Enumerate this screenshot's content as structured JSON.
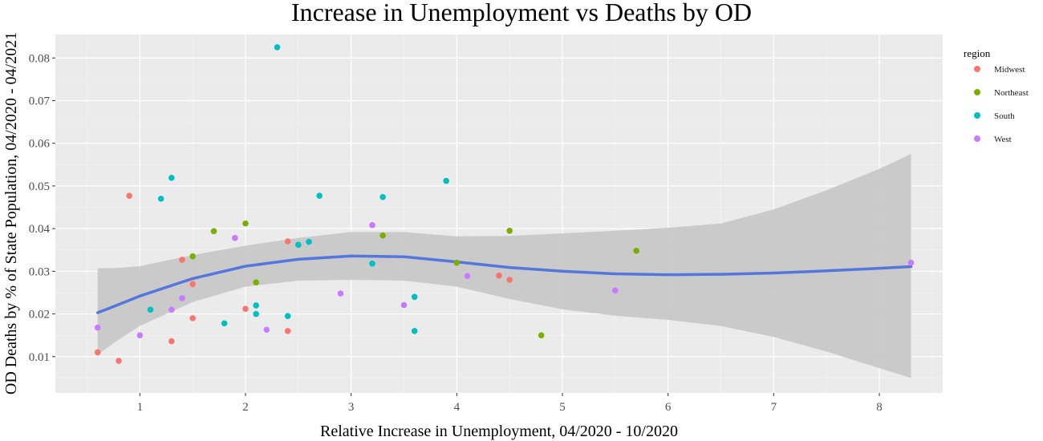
{
  "chart_data": {
    "type": "scatter",
    "title": "Increase in Unemployment vs Deaths by OD",
    "xlabel": "Relative Increase in Unemployment, 04/2020 - 10/2020",
    "ylabel": "OD Deaths by % of State Population, 04/2020 - 04/2021",
    "xlim": [
      0.2,
      8.6
    ],
    "ylim": [
      0.0015,
      0.0855
    ],
    "x_ticks": [
      1,
      2,
      3,
      4,
      5,
      6,
      7,
      8
    ],
    "x_tick_labels": [
      "1",
      "2",
      "3",
      "4",
      "5",
      "6",
      "7",
      "8"
    ],
    "y_ticks": [
      0.01,
      0.02,
      0.03,
      0.04,
      0.05,
      0.06,
      0.07,
      0.08
    ],
    "y_tick_labels": [
      "0.01",
      "0.02",
      "0.03",
      "0.04",
      "0.05",
      "0.06",
      "0.07",
      "0.08"
    ],
    "grid": true,
    "legend": {
      "title": "region",
      "position": "right",
      "entries": [
        {
          "label": "Midwest",
          "color": "#F8766D"
        },
        {
          "label": "Northeast",
          "color": "#7CAE00"
        },
        {
          "label": "South",
          "color": "#00BFC4"
        },
        {
          "label": "West",
          "color": "#C77CFF"
        }
      ]
    },
    "series": [
      {
        "name": "Midwest",
        "color": "#F8766D",
        "points": [
          [
            0.6,
            0.011
          ],
          [
            0.8,
            0.009
          ],
          [
            0.9,
            0.0477
          ],
          [
            1.3,
            0.0136
          ],
          [
            1.4,
            0.0327
          ],
          [
            1.5,
            0.027
          ],
          [
            1.5,
            0.019
          ],
          [
            2.0,
            0.0212
          ],
          [
            2.4,
            0.037
          ],
          [
            2.4,
            0.016
          ],
          [
            4.4,
            0.029
          ],
          [
            4.5,
            0.028
          ]
        ]
      },
      {
        "name": "Northeast",
        "color": "#7CAE00",
        "points": [
          [
            1.5,
            0.0335
          ],
          [
            1.7,
            0.0394
          ],
          [
            2.0,
            0.0412
          ],
          [
            2.1,
            0.0274
          ],
          [
            3.3,
            0.0384
          ],
          [
            4.0,
            0.032
          ],
          [
            4.5,
            0.0395
          ],
          [
            4.8,
            0.015
          ],
          [
            5.7,
            0.0348
          ]
        ]
      },
      {
        "name": "South",
        "color": "#00BFC4",
        "points": [
          [
            1.1,
            0.021
          ],
          [
            1.2,
            0.047
          ],
          [
            1.3,
            0.0519
          ],
          [
            1.8,
            0.0178
          ],
          [
            2.1,
            0.022
          ],
          [
            2.1,
            0.02
          ],
          [
            2.3,
            0.0825
          ],
          [
            2.4,
            0.0195
          ],
          [
            2.5,
            0.0362
          ],
          [
            2.6,
            0.0369
          ],
          [
            2.7,
            0.0477
          ],
          [
            3.2,
            0.0318
          ],
          [
            3.3,
            0.0474
          ],
          [
            3.6,
            0.024
          ],
          [
            3.6,
            0.016
          ],
          [
            3.9,
            0.0512
          ]
        ]
      },
      {
        "name": "West",
        "color": "#C77CFF",
        "points": [
          [
            0.6,
            0.0168
          ],
          [
            1.0,
            0.015
          ],
          [
            1.3,
            0.021
          ],
          [
            1.4,
            0.0237
          ],
          [
            1.9,
            0.0378
          ],
          [
            2.2,
            0.0163
          ],
          [
            2.9,
            0.0248
          ],
          [
            3.2,
            0.0408
          ],
          [
            3.5,
            0.0221
          ],
          [
            4.1,
            0.0289
          ],
          [
            5.5,
            0.0255
          ],
          [
            8.3,
            0.032
          ]
        ]
      }
    ],
    "smooth": {
      "color": "#5577DD",
      "band_color": "#C8C8C8",
      "x": [
        0.6,
        0.8,
        1.0,
        1.5,
        2.0,
        2.5,
        3.0,
        3.5,
        4.0,
        4.5,
        5.0,
        5.5,
        6.0,
        6.5,
        7.0,
        7.5,
        8.0,
        8.3
      ],
      "y": [
        0.0203,
        0.0222,
        0.0242,
        0.0283,
        0.0312,
        0.0328,
        0.0336,
        0.0334,
        0.0322,
        0.0309,
        0.03,
        0.0294,
        0.0292,
        0.0293,
        0.0296,
        0.0301,
        0.0307,
        0.0311
      ],
      "lower": [
        0.0105,
        0.014,
        0.0172,
        0.0228,
        0.0264,
        0.0278,
        0.028,
        0.0278,
        0.0264,
        0.0235,
        0.0211,
        0.0196,
        0.0186,
        0.0172,
        0.0146,
        0.0112,
        0.0073,
        0.005
      ],
      "upper": [
        0.0307,
        0.0308,
        0.0312,
        0.0338,
        0.036,
        0.0378,
        0.0392,
        0.0392,
        0.0382,
        0.0383,
        0.0389,
        0.0395,
        0.0402,
        0.0412,
        0.0445,
        0.049,
        0.054,
        0.0575
      ]
    }
  }
}
